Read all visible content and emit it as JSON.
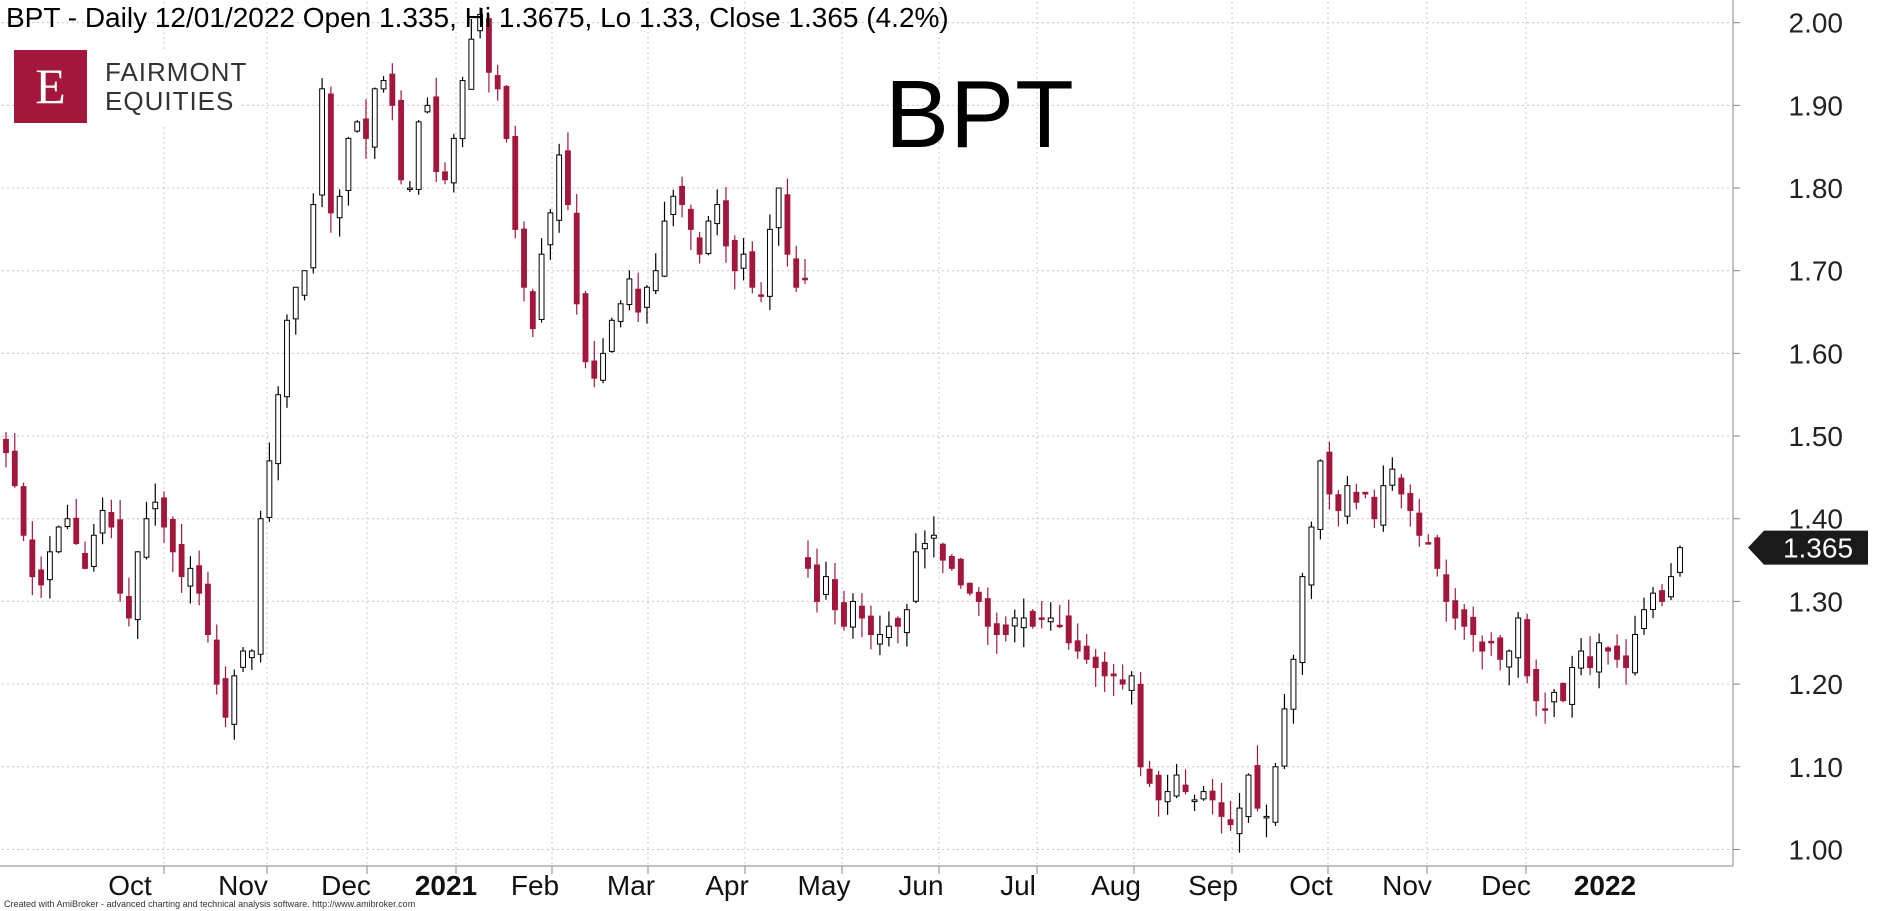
{
  "header": {
    "text": "BPT - Daily 12/01/2022 Open 1.335, Hi 1.3675, Lo 1.33, Close 1.365 (4.2%)"
  },
  "logo": {
    "letter": "E",
    "line1": "FAIRMONT",
    "line2": "EQUITIES"
  },
  "footer": {
    "text": "Created with AmiBroker - advanced charting and technical analysis software. http://www.amibroker.com"
  },
  "colors": {
    "up": "#ffffff",
    "up_outline": "#000000",
    "down": "#a3173c",
    "grid": "#c8c8c8",
    "price_tag": "#1a1a1a"
  },
  "chart_data": {
    "type": "candlestick",
    "title": "BPT",
    "ylim": [
      1.0,
      2.05
    ],
    "yticks": [
      "1.00",
      "1.10",
      "1.20",
      "1.30",
      "1.40",
      "1.50",
      "1.60",
      "1.70",
      "1.80",
      "1.90",
      "2.00"
    ],
    "last_price_label": "1.365",
    "last_price": 1.365,
    "months": [
      {
        "label": "Oct",
        "bold": false
      },
      {
        "label": "Nov",
        "bold": false
      },
      {
        "label": "Dec",
        "bold": false
      },
      {
        "label": "2021",
        "bold": true
      },
      {
        "label": "Feb",
        "bold": false
      },
      {
        "label": "Mar",
        "bold": false
      },
      {
        "label": "Apr",
        "bold": false
      },
      {
        "label": "May",
        "bold": false
      },
      {
        "label": "Jun",
        "bold": false
      },
      {
        "label": "Jul",
        "bold": false
      },
      {
        "label": "Aug",
        "bold": false
      },
      {
        "label": "Sep",
        "bold": false
      },
      {
        "label": "Oct",
        "bold": false
      },
      {
        "label": "Nov",
        "bold": false
      },
      {
        "label": "Dec",
        "bold": false
      },
      {
        "label": "2022",
        "bold": true
      }
    ],
    "trading_gap": {
      "after_label": "Apr",
      "note": "trading halt between late April and mid May 2021"
    },
    "segments": [
      {
        "from": "Sep 2020",
        "to": "Apr 2021",
        "closes": [
          1.48,
          1.44,
          1.38,
          1.33,
          1.32,
          1.36,
          1.39,
          1.4,
          1.37,
          1.34,
          1.38,
          1.41,
          1.39,
          1.31,
          1.28,
          1.36,
          1.4,
          1.42,
          1.39,
          1.36,
          1.33,
          1.34,
          1.31,
          1.26,
          1.2,
          1.16,
          1.21,
          1.24,
          1.24,
          1.4,
          1.47,
          1.55,
          1.64,
          1.68,
          1.7,
          1.78,
          1.92,
          1.77,
          1.79,
          1.86,
          1.88,
          1.86,
          1.92,
          1.93,
          1.9,
          1.81,
          1.8,
          1.88,
          1.9,
          1.82,
          1.81,
          1.86,
          1.93,
          1.98,
          2.01,
          1.94,
          1.92,
          1.86,
          1.75,
          1.68,
          1.63,
          1.72,
          1.77,
          1.84,
          1.78,
          1.66,
          1.59,
          1.57,
          1.6,
          1.64,
          1.66,
          1.69,
          1.65,
          1.68,
          1.7,
          1.76,
          1.79,
          1.78,
          1.75,
          1.72,
          1.76,
          1.78,
          1.73,
          1.7,
          1.72,
          1.68,
          1.67,
          1.75,
          1.8,
          1.72,
          1.68,
          1.69
        ]
      },
      {
        "from": "May 2021",
        "to": "Jan 2022",
        "closes": [
          1.34,
          1.3,
          1.33,
          1.29,
          1.27,
          1.3,
          1.28,
          1.26,
          1.26,
          1.27,
          1.27,
          1.29,
          1.36,
          1.37,
          1.38,
          1.35,
          1.34,
          1.32,
          1.31,
          1.3,
          1.27,
          1.26,
          1.26,
          1.28,
          1.28,
          1.27,
          1.28,
          1.28,
          1.27,
          1.25,
          1.24,
          1.23,
          1.22,
          1.21,
          1.21,
          1.2,
          1.21,
          1.1,
          1.08,
          1.06,
          1.07,
          1.09,
          1.07,
          1.06,
          1.07,
          1.06,
          1.04,
          1.03,
          1.05,
          1.09,
          1.05,
          1.04,
          1.1,
          1.17,
          1.23,
          1.33,
          1.39,
          1.47,
          1.43,
          1.41,
          1.44,
          1.42,
          1.43,
          1.4,
          1.44,
          1.46,
          1.43,
          1.41,
          1.38,
          1.37,
          1.34,
          1.3,
          1.28,
          1.27,
          1.26,
          1.24,
          1.25,
          1.23,
          1.24,
          1.28,
          1.21,
          1.18,
          1.17,
          1.19,
          1.18,
          1.22,
          1.24,
          1.22,
          1.25,
          1.24,
          1.23,
          1.22,
          1.26,
          1.29,
          1.31,
          1.3,
          1.33,
          1.365
        ]
      }
    ]
  }
}
